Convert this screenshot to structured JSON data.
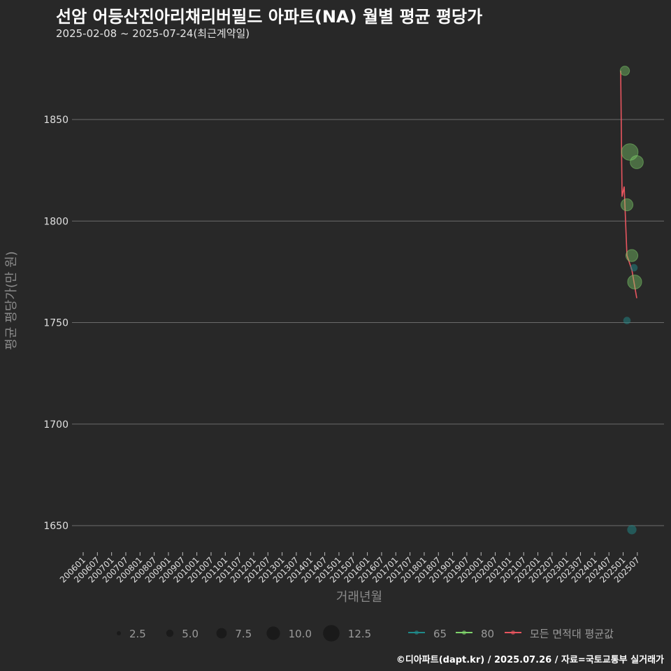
{
  "header": {
    "title": "선암 어등산진아리채리버필드 아파트(NA) 월별 평균 평당가",
    "subtitle": "2025-02-08 ~ 2025-07-24(최근계약일)"
  },
  "caption": "©디아파트(dapt.kr) / 2025.07.26 / 자료=국토교통부 실거래가",
  "colors": {
    "background": "#282828",
    "grid": "#6b6b6b",
    "series_65": "#1f8a8a",
    "series_80": "#7fd36b",
    "avg_line": "#e8555f"
  },
  "chart_data": {
    "type": "scatter",
    "title": "선암 어등산진아리채리버필드 아파트(NA) 월별 평균 평당가",
    "subtitle": "2025-02-08 ~ 2025-07-24(최근계약일)",
    "xlabel": "거래년월",
    "ylabel": "평균 평당가(만 원)",
    "ylim": [
      1635,
      1878
    ],
    "yticks": [
      1650,
      1700,
      1750,
      1800,
      1850
    ],
    "xticks": [
      "200601",
      "200607",
      "200701",
      "200707",
      "200801",
      "200807",
      "200901",
      "200907",
      "201001",
      "201007",
      "201101",
      "201107",
      "201201",
      "201207",
      "201301",
      "201307",
      "201401",
      "201407",
      "201501",
      "201507",
      "201601",
      "201607",
      "201701",
      "201707",
      "201801",
      "201807",
      "201901",
      "201907",
      "202001",
      "202007",
      "202101",
      "202107",
      "202201",
      "202207",
      "202301",
      "202307",
      "202401",
      "202407",
      "202501",
      "202507"
    ],
    "grid": true,
    "legend_position": "bottom",
    "size_legend": {
      "title": "",
      "values": [
        2.5,
        5.0,
        7.5,
        10.0,
        12.5
      ],
      "labels": [
        "2.5",
        "5.0",
        "7.5",
        "10.0",
        "12.5"
      ]
    },
    "color_legend": [
      {
        "label": "65",
        "color": "#1f8a8a"
      },
      {
        "label": "80",
        "color": "#7fd36b"
      },
      {
        "label": "모든 면적대 평균값",
        "color": "#e8555f"
      }
    ],
    "series": [
      {
        "name": "65",
        "points": [
          {
            "x": "202502",
            "y": 1751,
            "size": 1
          },
          {
            "x": "202504",
            "y": 1777,
            "size": 1
          },
          {
            "x": "202505",
            "y": 1648,
            "size": 2
          }
        ]
      },
      {
        "name": "80",
        "points": [
          {
            "x": "202502",
            "y": 1874,
            "size": 2
          },
          {
            "x": "202503",
            "y": 1834,
            "size": 9
          },
          {
            "x": "202503",
            "y": 1808,
            "size": 4
          },
          {
            "x": "202504",
            "y": 1783,
            "size": 4
          },
          {
            "x": "202505",
            "y": 1829,
            "size": 5
          },
          {
            "x": "202506",
            "y": 1770,
            "size": 6
          }
        ]
      },
      {
        "name": "모든 면적대 평균값",
        "type": "line",
        "points": [
          {
            "x": "202501",
            "y": 1874
          },
          {
            "x": "202502",
            "y": 1812
          },
          {
            "x": "202502",
            "y": 1817
          },
          {
            "x": "202503",
            "y": 1783
          },
          {
            "x": "202504",
            "y": 1776
          },
          {
            "x": "202506",
            "y": 1762
          }
        ]
      }
    ]
  }
}
